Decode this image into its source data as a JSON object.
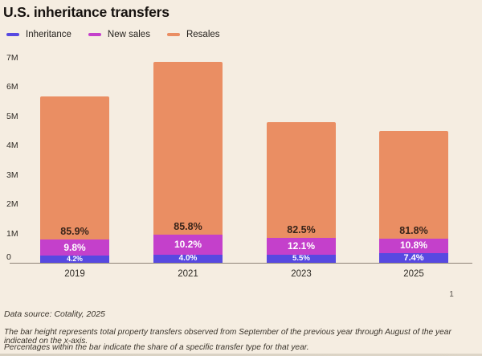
{
  "title": "U.S. inheritance transfers",
  "legend": [
    {
      "label": "Inheritance",
      "color": "#5749E1"
    },
    {
      "label": "New sales",
      "color": "#C440CB"
    },
    {
      "label": "Resales",
      "color": "#EA8E63"
    }
  ],
  "chart_data": {
    "type": "bar",
    "stacked": true,
    "title": "U.S. inheritance transfers",
    "categories": [
      "2019",
      "2021",
      "2023",
      "2025"
    ],
    "totals_millions": [
      5.7,
      6.85,
      4.8,
      4.5
    ],
    "series": [
      {
        "name": "Inheritance",
        "color": "#5749E1",
        "pct": [
          4.2,
          4.0,
          5.5,
          7.4
        ]
      },
      {
        "name": "New sales",
        "color": "#C440CB",
        "pct": [
          9.8,
          10.2,
          12.1,
          10.8
        ]
      },
      {
        "name": "Resales",
        "color": "#EA8E63",
        "pct": [
          85.9,
          85.8,
          82.5,
          81.8
        ]
      }
    ],
    "ytick_labels": [
      "0",
      "1M",
      "2M",
      "3M",
      "4M",
      "5M",
      "6M",
      "7M"
    ],
    "ylim": [
      0,
      7000000
    ],
    "xlabel": "",
    "ylabel": "",
    "grid": false,
    "legend_position": "top-left",
    "label_colors": {
      "on_resales": "#38241A",
      "on_new_sales": "#FFFFFF",
      "on_inheritance": "#FFFFFF"
    }
  },
  "page_number": "1",
  "footer": {
    "source": "Data source: Cotality, 2025",
    "note_line1": "The bar height represents total property transfers observed from September of the previous year through August of the year indicated on the x-axis.",
    "note_line2": "Percentages within the bar indicate the share of a specific transfer type for that year."
  }
}
